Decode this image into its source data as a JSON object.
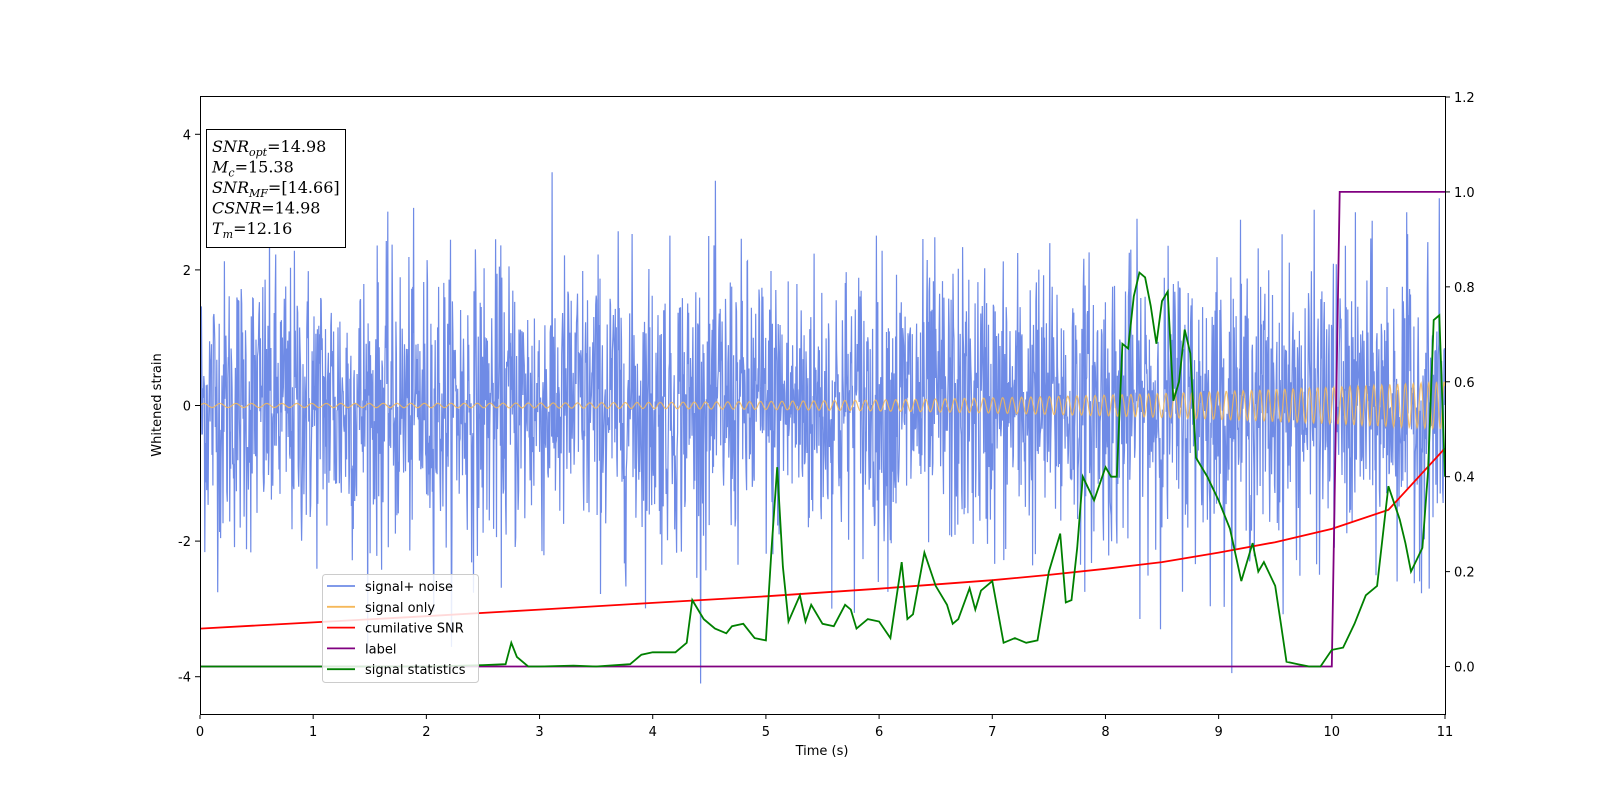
{
  "chart_data": {
    "type": "line",
    "xlabel": "Time (s)",
    "ylabel": "Whitened strain",
    "xlim": [
      0,
      11
    ],
    "ylim": [
      -4.55,
      4.55
    ],
    "y2lim": [
      -0.1,
      1.2
    ],
    "xticks": [
      0,
      1,
      2,
      3,
      4,
      5,
      6,
      7,
      8,
      9,
      10,
      11
    ],
    "yticks": [
      -4,
      -2,
      0,
      2,
      4
    ],
    "y2ticks": [
      0.0,
      0.2,
      0.4,
      0.6,
      0.8,
      1.0,
      1.2
    ],
    "grid": false,
    "legend_position": "lower-left",
    "info_box": {
      "lines": [
        {
          "main": "SNR",
          "sub": "opt",
          "rest": "=14.98"
        },
        {
          "main": "M",
          "sub": "c",
          "rest": "=15.38"
        },
        {
          "main": "SNR",
          "sub": "MF",
          "rest": "=[14.66]"
        },
        {
          "main": "CSNR",
          "sub": "",
          "rest": "=14.98"
        },
        {
          "main": "T",
          "sub": "m",
          "rest": "=12.16"
        }
      ]
    },
    "series": [
      {
        "name": "signal+ noise",
        "color": "#6f8be6",
        "axis": "left",
        "kind": "noise",
        "approx_range": [
          -4.1,
          4.1
        ],
        "typical_std": 1.0
      },
      {
        "name": "signal only",
        "color": "#f5b85a",
        "axis": "left",
        "kind": "chirp",
        "amplitude_start": 0.03,
        "amplitude_end": 0.35
      },
      {
        "name": "cumilative SNR",
        "color": "#ff0000",
        "axis": "right",
        "x": [
          0,
          1,
          2,
          3,
          4,
          5,
          6,
          7,
          7.5,
          8,
          8.5,
          9,
          9.5,
          10,
          10.5,
          11
        ],
        "y": [
          0.08,
          0.093,
          0.106,
          0.12,
          0.134,
          0.148,
          0.164,
          0.182,
          0.193,
          0.206,
          0.22,
          0.24,
          0.262,
          0.29,
          0.33,
          0.46
        ]
      },
      {
        "name": "label",
        "color": "#800080",
        "axis": "right",
        "x": [
          0,
          10.0,
          10.07,
          11
        ],
        "y": [
          0.0,
          0.0,
          1.0,
          1.0
        ]
      },
      {
        "name": "signal statistics",
        "color": "#008000",
        "axis": "right",
        "x": [
          0,
          1,
          2,
          2.5,
          2.7,
          2.75,
          2.8,
          2.9,
          3.0,
          3.3,
          3.5,
          3.8,
          3.9,
          4.0,
          4.2,
          4.3,
          4.35,
          4.45,
          4.55,
          4.65,
          4.7,
          4.8,
          4.9,
          5.0,
          5.05,
          5.1,
          5.15,
          5.2,
          5.3,
          5.35,
          5.4,
          5.5,
          5.6,
          5.7,
          5.75,
          5.8,
          5.9,
          6.0,
          6.1,
          6.2,
          6.25,
          6.3,
          6.4,
          6.5,
          6.6,
          6.65,
          6.7,
          6.8,
          6.85,
          6.9,
          7.0,
          7.1,
          7.2,
          7.3,
          7.4,
          7.5,
          7.6,
          7.65,
          7.7,
          7.75,
          7.8,
          7.9,
          8.0,
          8.05,
          8.1,
          8.15,
          8.2,
          8.25,
          8.3,
          8.35,
          8.4,
          8.45,
          8.5,
          8.55,
          8.6,
          8.65,
          8.7,
          8.75,
          8.8,
          8.9,
          9.0,
          9.1,
          9.2,
          9.3,
          9.35,
          9.4,
          9.5,
          9.55,
          9.6,
          9.7,
          9.8,
          9.9,
          10.0,
          10.1,
          10.2,
          10.3,
          10.4,
          10.5,
          10.6,
          10.65,
          10.7,
          10.8,
          10.85,
          10.9,
          10.95,
          11.0
        ],
        "y": [
          0.0,
          0.0,
          0.0,
          0.003,
          0.005,
          0.05,
          0.02,
          0.0,
          0.0,
          0.002,
          0.0,
          0.005,
          0.025,
          0.03,
          0.03,
          0.05,
          0.14,
          0.1,
          0.08,
          0.07,
          0.085,
          0.09,
          0.06,
          0.055,
          0.25,
          0.42,
          0.21,
          0.095,
          0.15,
          0.095,
          0.13,
          0.09,
          0.085,
          0.13,
          0.12,
          0.08,
          0.1,
          0.095,
          0.06,
          0.22,
          0.1,
          0.11,
          0.24,
          0.17,
          0.13,
          0.09,
          0.1,
          0.165,
          0.12,
          0.16,
          0.18,
          0.05,
          0.06,
          0.05,
          0.055,
          0.2,
          0.28,
          0.135,
          0.14,
          0.25,
          0.4,
          0.35,
          0.42,
          0.4,
          0.4,
          0.68,
          0.67,
          0.78,
          0.83,
          0.82,
          0.76,
          0.68,
          0.77,
          0.79,
          0.56,
          0.6,
          0.71,
          0.66,
          0.44,
          0.4,
          0.35,
          0.29,
          0.18,
          0.26,
          0.2,
          0.22,
          0.17,
          0.09,
          0.01,
          0.005,
          0.0,
          0.0,
          0.035,
          0.04,
          0.09,
          0.15,
          0.17,
          0.38,
          0.31,
          0.26,
          0.2,
          0.25,
          0.41,
          0.73,
          0.74,
          0.4
        ]
      }
    ]
  }
}
